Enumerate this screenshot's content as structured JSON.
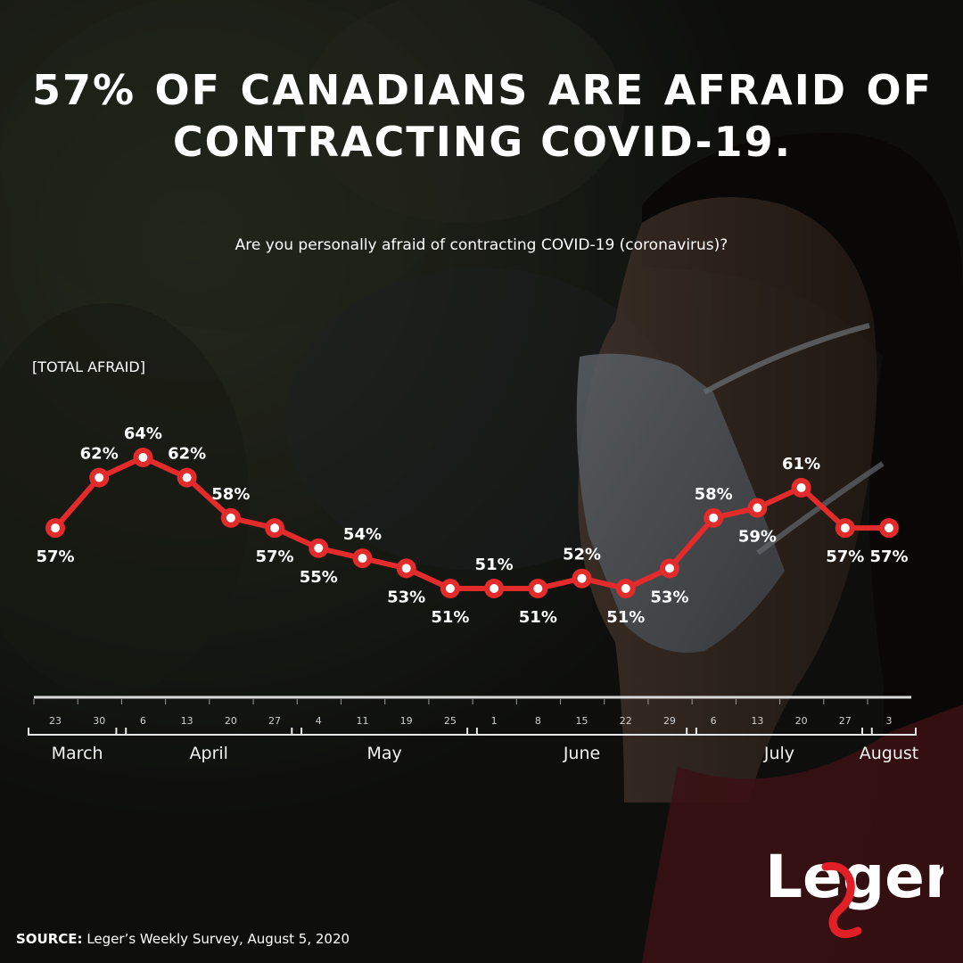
{
  "header": {
    "title_line1": "57% OF CANADIANS ARE AFRAID OF",
    "title_line2": "CONTRACTING COVID-19.",
    "question": "Are you personally afraid of contracting COVID-19 (coronavirus)?"
  },
  "chart_data": {
    "type": "line",
    "title": "57% OF CANADIANS ARE AFRAID OF CONTRACTING COVID-19.",
    "subtitle": "Are you personally afraid of contracting COVID-19 (coronavirus)?",
    "series_label": "[TOTAL AFRAID]",
    "xlabel": "",
    "ylabel": "",
    "ylim": [
      50,
      65
    ],
    "grid": false,
    "categories": [
      "23",
      "30",
      "6",
      "13",
      "20",
      "27",
      "4",
      "11",
      "19",
      "25",
      "1",
      "8",
      "15",
      "22",
      "29",
      "6",
      "13",
      "20",
      "27",
      "3"
    ],
    "series": [
      {
        "name": "Total afraid",
        "values": [
          57,
          62,
          64,
          62,
          58,
          57,
          55,
          54,
          53,
          51,
          51,
          51,
          52,
          51,
          53,
          58,
          59,
          61,
          57,
          57
        ],
        "labels": [
          "57%",
          "62%",
          "64%",
          "62%",
          "58%",
          "57%",
          "55%",
          "54%",
          "53%",
          "51%",
          "51%",
          "51%",
          "52%",
          "51%",
          "53%",
          "58%",
          "59%",
          "61%",
          "57%",
          "57%"
        ],
        "label_positions": [
          "below",
          "above",
          "above",
          "above",
          "above",
          "below",
          "below",
          "above",
          "below",
          "below",
          "above",
          "below",
          "above",
          "below",
          "below",
          "above",
          "below",
          "above",
          "below",
          "below"
        ]
      }
    ],
    "month_groups": [
      {
        "name": "March",
        "start": 0,
        "end": 1
      },
      {
        "name": "April",
        "start": 2,
        "end": 5
      },
      {
        "name": "May",
        "start": 6,
        "end": 9
      },
      {
        "name": "June",
        "start": 10,
        "end": 14
      },
      {
        "name": "July",
        "start": 15,
        "end": 18
      },
      {
        "name": "August",
        "start": 19,
        "end": 19
      }
    ]
  },
  "footer": {
    "source_label": "SOURCE:",
    "source_text": "Leger’s Weekly Survey, August 5, 2020",
    "brand": "Leger"
  },
  "colors": {
    "line": "#e32b2b",
    "marker_fill": "#ffffff",
    "brand_red": "#e01f26",
    "text": "#ffffff",
    "axis": "#d9d9d9"
  }
}
